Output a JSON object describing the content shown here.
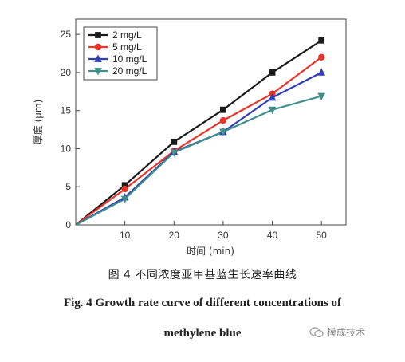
{
  "chart_data": {
    "type": "line",
    "title": "",
    "xlabel": "时间 (min)",
    "ylabel": "厚度 (μm)",
    "x": [
      0,
      10,
      20,
      30,
      40,
      50
    ],
    "xticks": [
      "10",
      "20",
      "30",
      "40",
      "50"
    ],
    "yticks": [
      "0",
      "5",
      "10",
      "15",
      "20",
      "25"
    ],
    "xlim": [
      0,
      55
    ],
    "ylim": [
      0,
      27
    ],
    "grid": false,
    "legend_position": "top-left",
    "series": [
      {
        "name": "2 mg/L",
        "color": "#1a1a1a",
        "marker": "square",
        "values": [
          0,
          5.2,
          10.9,
          15.1,
          20.0,
          24.2
        ]
      },
      {
        "name": "5 mg/L",
        "color": "#e8352a",
        "marker": "circle",
        "values": [
          0,
          4.7,
          9.7,
          13.7,
          17.2,
          22.0
        ]
      },
      {
        "name": "10 mg/L",
        "color": "#2f3fb5",
        "marker": "triangle-up",
        "values": [
          0,
          3.6,
          9.6,
          12.2,
          16.7,
          20.0
        ]
      },
      {
        "name": "20 mg/L",
        "color": "#3f8f8c",
        "marker": "triangle-down",
        "values": [
          0,
          3.4,
          9.5,
          12.2,
          15.1,
          16.9
        ]
      }
    ]
  },
  "caption": {
    "chinese": "图 4   不同浓度亚甲基蓝生长速率曲线",
    "english_line1": "Fig. 4    Growth rate curve of different concentrations of",
    "english_line2": "methylene blue"
  },
  "watermark": {
    "text": "模成技术",
    "icon": "wechat-icon"
  }
}
